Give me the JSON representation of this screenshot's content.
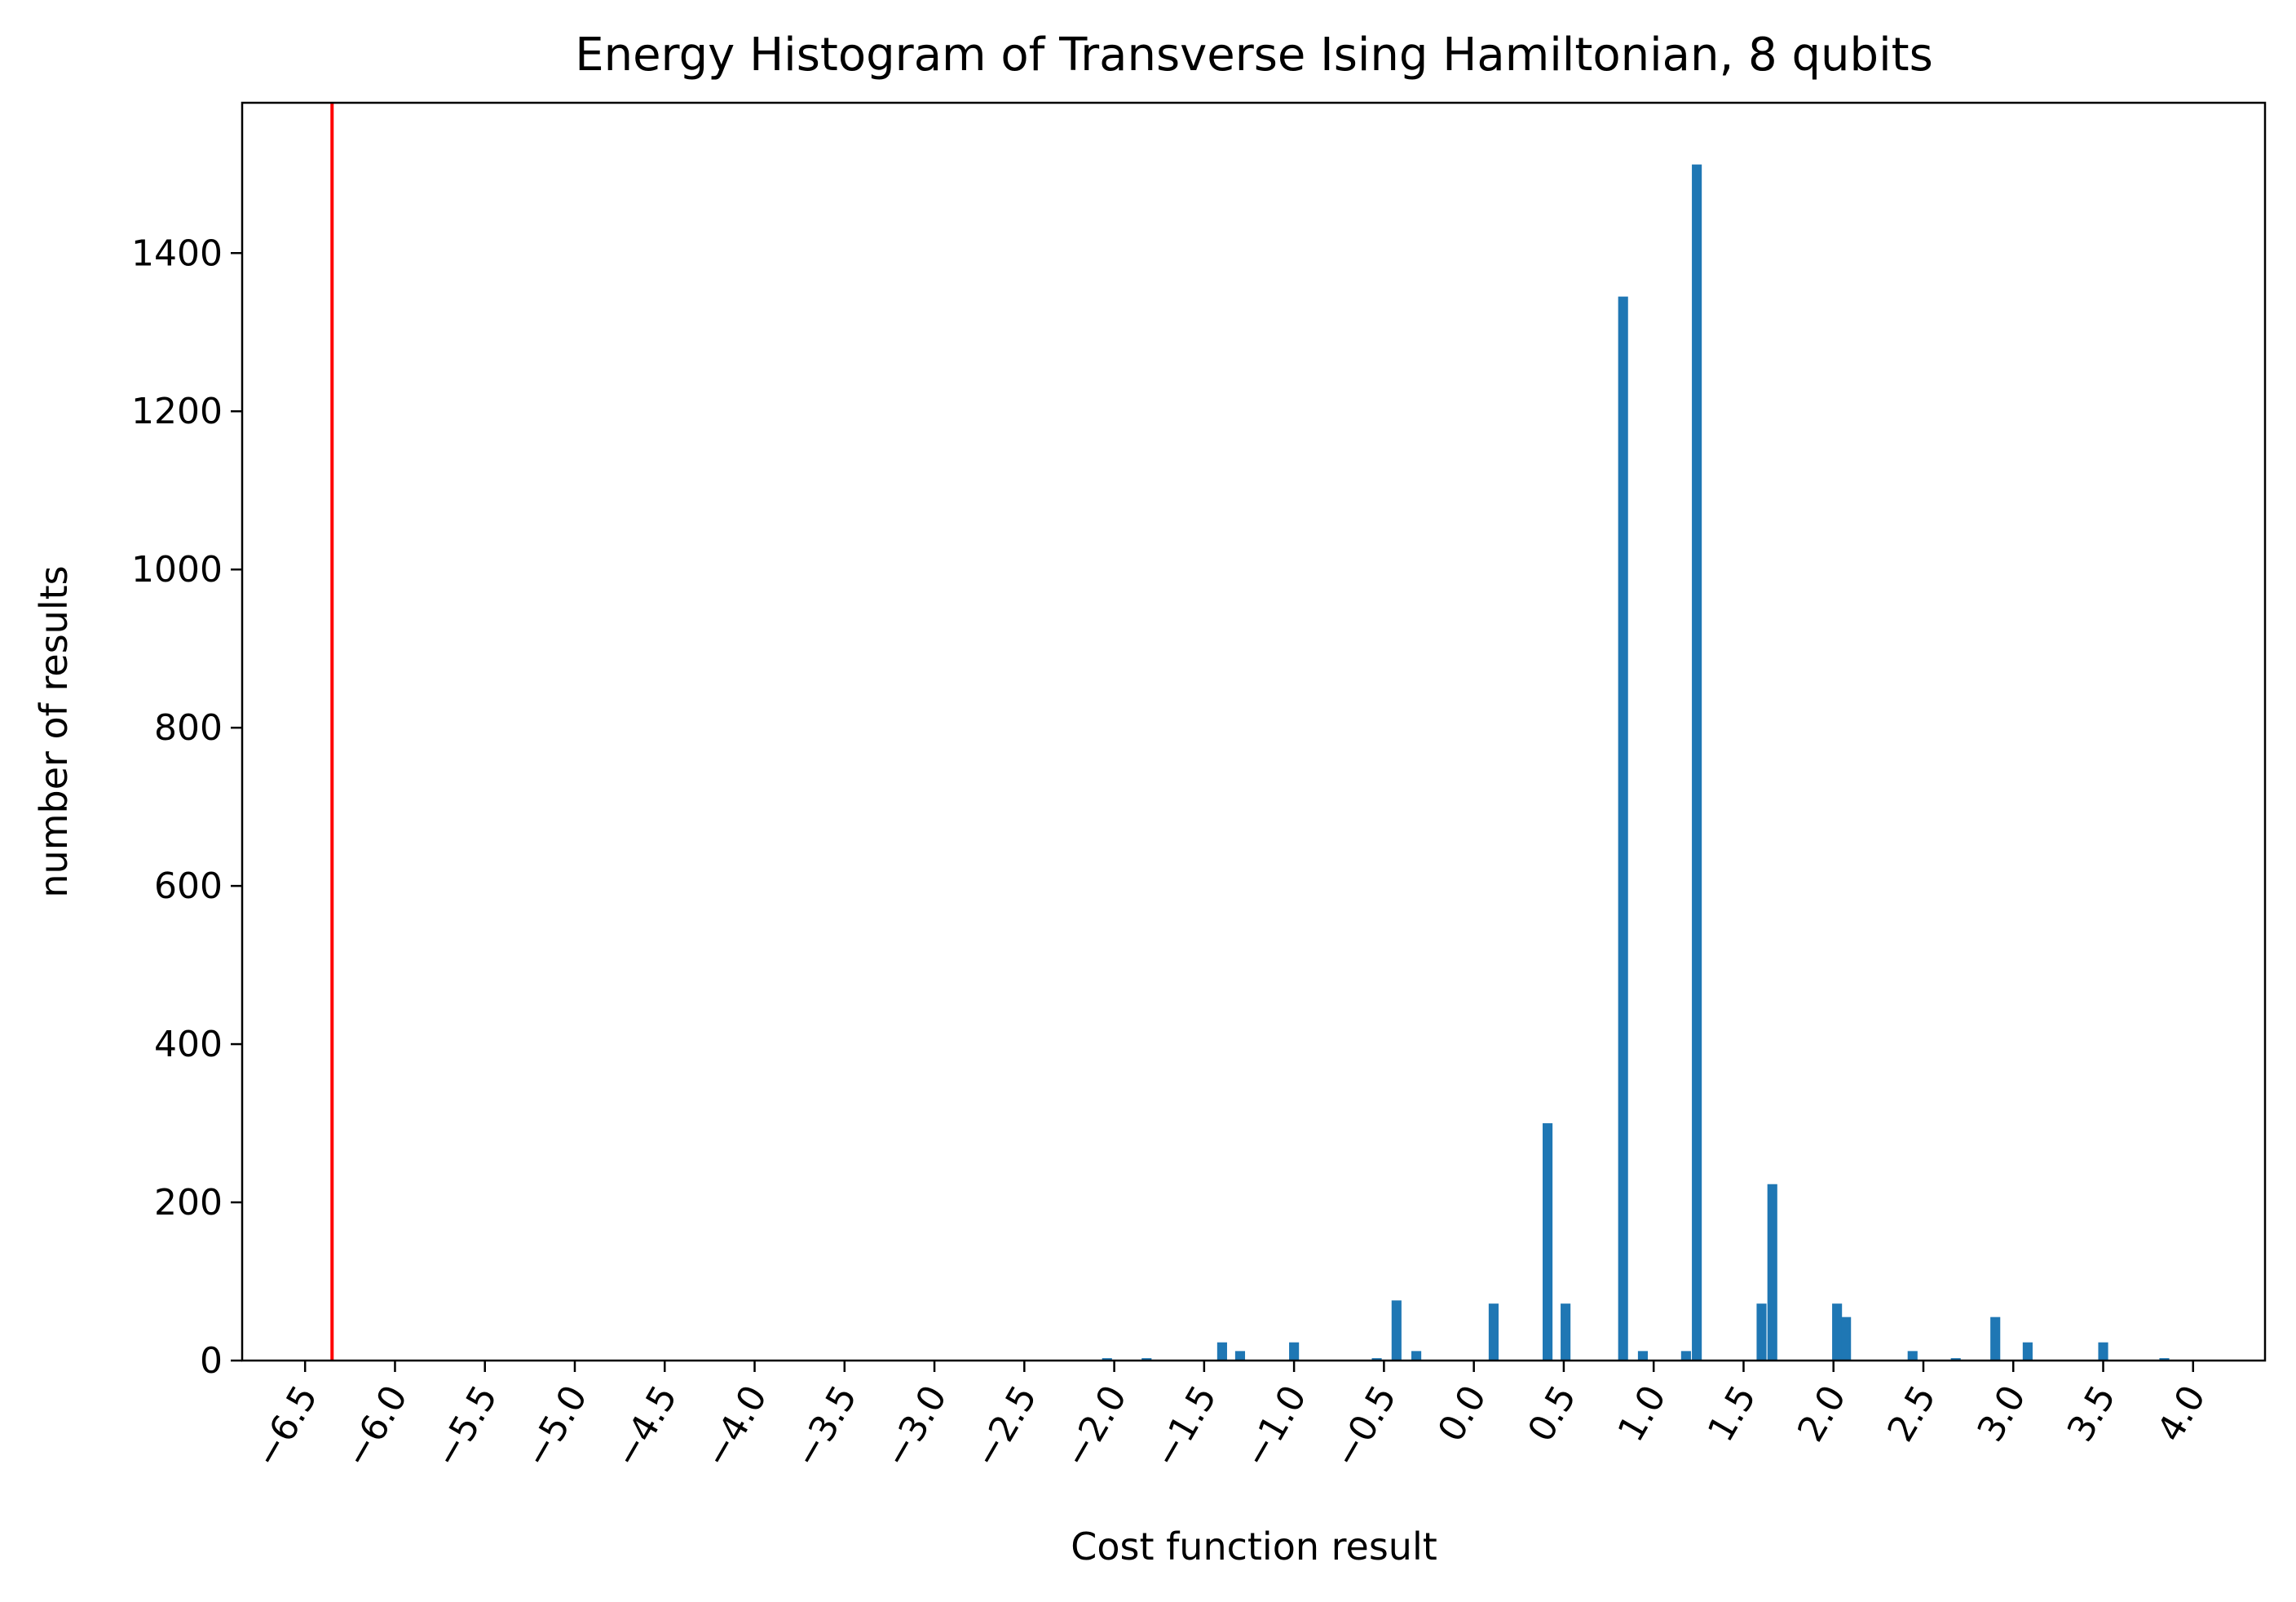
{
  "chart_data": {
    "type": "bar",
    "title": "Energy Histogram of Transverse Ising Hamiltonian, 8 qubits",
    "xlabel": "Cost function result",
    "ylabel": "number of results",
    "xlim": [
      -6.85,
      4.4
    ],
    "ylim": [
      0,
      1590
    ],
    "bin_width": 0.055,
    "x_ticks": [
      -6.5,
      -6.0,
      -5.5,
      -5.0,
      -4.5,
      -4.0,
      -3.5,
      -3.0,
      -2.5,
      -2.0,
      -1.5,
      -1.0,
      -0.5,
      0.0,
      0.5,
      1.0,
      1.5,
      2.0,
      2.5,
      3.0,
      3.5,
      4.0
    ],
    "x_tick_labels": [
      "−6.5",
      "−6.0",
      "−5.5",
      "−5.0",
      "−4.5",
      "−4.0",
      "−3.5",
      "−3.0",
      "−2.5",
      "−2.0",
      "−1.5",
      "−1.0",
      "−0.5",
      "0.0",
      "0.5",
      "1.0",
      "1.5",
      "2.0",
      "2.5",
      "3.0",
      "3.5",
      "4.0"
    ],
    "y_ticks": [
      0,
      200,
      400,
      600,
      800,
      1000,
      1200,
      1400
    ],
    "y_tick_labels": [
      "0",
      "200",
      "400",
      "600",
      "800",
      "1000",
      "1200",
      "1400"
    ],
    "bars": [
      {
        "x": -2.04,
        "y": 3
      },
      {
        "x": -1.82,
        "y": 3
      },
      {
        "x": -1.4,
        "y": 23
      },
      {
        "x": -1.3,
        "y": 12
      },
      {
        "x": -1.0,
        "y": 23
      },
      {
        "x": -0.54,
        "y": 3
      },
      {
        "x": -0.43,
        "y": 76
      },
      {
        "x": -0.32,
        "y": 12
      },
      {
        "x": 0.11,
        "y": 72
      },
      {
        "x": 0.41,
        "y": 300
      },
      {
        "x": 0.51,
        "y": 72
      },
      {
        "x": 0.83,
        "y": 1345
      },
      {
        "x": 0.94,
        "y": 12
      },
      {
        "x": 1.18,
        "y": 12
      },
      {
        "x": 1.24,
        "y": 1512
      },
      {
        "x": 1.6,
        "y": 72
      },
      {
        "x": 1.66,
        "y": 223
      },
      {
        "x": 2.02,
        "y": 72
      },
      {
        "x": 2.07,
        "y": 55
      },
      {
        "x": 2.44,
        "y": 12
      },
      {
        "x": 2.68,
        "y": 3
      },
      {
        "x": 2.9,
        "y": 55
      },
      {
        "x": 3.08,
        "y": 23
      },
      {
        "x": 3.5,
        "y": 23
      },
      {
        "x": 3.84,
        "y": 3
      }
    ],
    "reference_line": {
      "x": -6.35,
      "color": "#ff0000"
    },
    "colors": {
      "bars": "#1f77b4",
      "reference_line": "#ff0000",
      "axes": "#000000"
    },
    "grid": false,
    "legend": "none"
  }
}
